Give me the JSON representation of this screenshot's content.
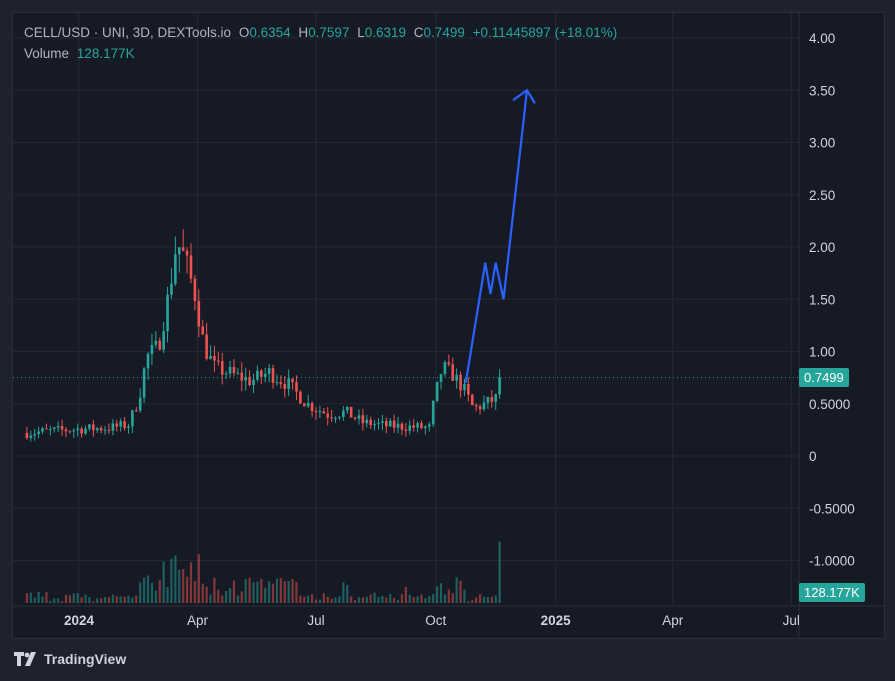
{
  "legend": {
    "symbol": "CELL/USD · UNI, 3D, DEXTools.io",
    "open_label": "O",
    "open": "0.6354",
    "high_label": "H",
    "high": "0.7597",
    "low_label": "L",
    "low": "0.6319",
    "close_label": "C",
    "close": "0.7499",
    "change": "+0.11445897 (+18.01%)",
    "volume_label": "Volume",
    "volume": "128.177K"
  },
  "badges": {
    "price": "0.7499",
    "volume": "128.177K"
  },
  "brand": {
    "name": "TradingView",
    "icon": "tradingview-logo-icon"
  },
  "colors": {
    "up": "#26a69a",
    "down": "#ef5350",
    "drawing": "#2962ff"
  },
  "chart_data": {
    "type": "candlestick",
    "price_axis": {
      "ticks": [
        4.0,
        3.5,
        3.0,
        2.5,
        2.0,
        1.5,
        1.0,
        0.5,
        0,
        -0.5,
        -1.0
      ],
      "tick_labels": [
        "4.00",
        "3.50",
        "3.00",
        "2.50",
        "2.00",
        "1.50",
        "1.00",
        "0.5000",
        "0",
        "-0.5000",
        "-1.0000"
      ]
    },
    "time_axis": {
      "ticks": [
        "2024-01-01",
        "2024-04-01",
        "2024-07-01",
        "2024-10-01",
        "2025-01-01",
        "2025-04-01",
        "2025-07-01"
      ],
      "tick_labels": [
        "2024",
        "Apr",
        "Jul",
        "Oct",
        "2025",
        "Apr",
        "Jul"
      ]
    },
    "last_price": 0.7499,
    "grid": true,
    "series": [
      {
        "name": "CELL/USD",
        "anchors": [
          {
            "date": "2023-11-22",
            "price": 0.22
          },
          {
            "date": "2023-12-10",
            "price": 0.24
          },
          {
            "date": "2024-01-05",
            "price": 0.26
          },
          {
            "date": "2024-01-25",
            "price": 0.27
          },
          {
            "date": "2024-02-08",
            "price": 0.3
          },
          {
            "date": "2024-02-16",
            "price": 0.55
          },
          {
            "date": "2024-02-22",
            "price": 0.95
          },
          {
            "date": "2024-03-02",
            "price": 1.05
          },
          {
            "date": "2024-03-10",
            "price": 1.55
          },
          {
            "date": "2024-03-16",
            "price": 2.05
          },
          {
            "date": "2024-03-22",
            "price": 1.9
          },
          {
            "date": "2024-03-30",
            "price": 1.55
          },
          {
            "date": "2024-04-06",
            "price": 1.05
          },
          {
            "date": "2024-04-14",
            "price": 0.85
          },
          {
            "date": "2024-04-28",
            "price": 0.78
          },
          {
            "date": "2024-05-12",
            "price": 0.72
          },
          {
            "date": "2024-05-26",
            "price": 0.8
          },
          {
            "date": "2024-06-10",
            "price": 0.68
          },
          {
            "date": "2024-06-24",
            "price": 0.5
          },
          {
            "date": "2024-07-10",
            "price": 0.4
          },
          {
            "date": "2024-07-24",
            "price": 0.42
          },
          {
            "date": "2024-08-06",
            "price": 0.32
          },
          {
            "date": "2024-08-24",
            "price": 0.29
          },
          {
            "date": "2024-09-10",
            "price": 0.28
          },
          {
            "date": "2024-09-26",
            "price": 0.27
          },
          {
            "date": "2024-09-30",
            "price": 0.55
          },
          {
            "date": "2024-10-06",
            "price": 0.85
          },
          {
            "date": "2024-10-14",
            "price": 0.78
          },
          {
            "date": "2024-10-22",
            "price": 0.65
          },
          {
            "date": "2024-10-30",
            "price": 0.45
          },
          {
            "date": "2024-11-08",
            "price": 0.5
          },
          {
            "date": "2024-11-16",
            "price": 0.55
          },
          {
            "date": "2024-11-20",
            "price": 0.7499
          }
        ]
      }
    ],
    "volume": {
      "name": "Volume",
      "last": "128.177K"
    },
    "drawing": {
      "type": "polyline",
      "points": [
        {
          "date": "2024-10-24",
          "price": 0.7
        },
        {
          "date": "2024-11-08",
          "price": 1.85
        },
        {
          "date": "2024-11-12",
          "price": 1.55
        },
        {
          "date": "2024-11-16",
          "price": 1.85
        },
        {
          "date": "2024-11-22",
          "price": 1.5
        },
        {
          "date": "2024-12-10",
          "price": 3.5
        }
      ]
    }
  }
}
